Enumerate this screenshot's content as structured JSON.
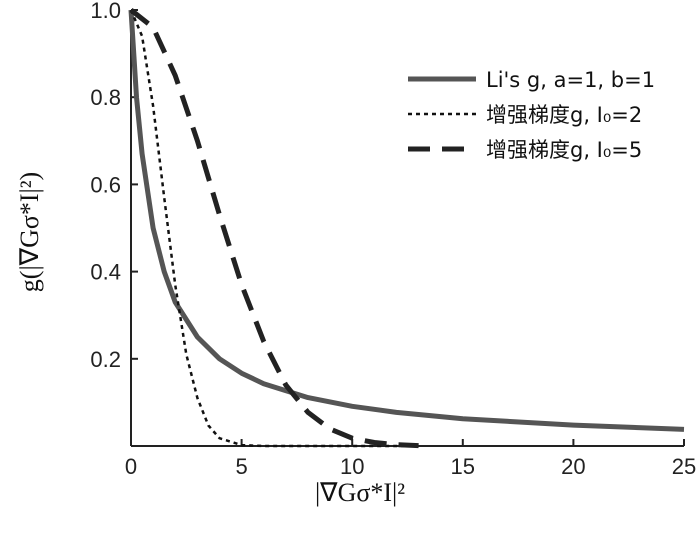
{
  "chart_data": {
    "type": "line",
    "xlabel": "|∇Gσ*I|²",
    "ylabel": "g(|∇Gσ*I|²)",
    "xlim": [
      0,
      25
    ],
    "ylim": [
      0,
      1.0
    ],
    "x_ticks": [
      0,
      5,
      10,
      15,
      20,
      25
    ],
    "y_ticks": [
      0.2,
      0.4,
      0.6,
      0.8,
      1.0
    ],
    "y_tick_labels": [
      "0.2",
      "0.4",
      "0.6",
      "0.8",
      "1.0"
    ],
    "grid": false,
    "legend_position": "top-right",
    "series": [
      {
        "name": "Li's g, a=1, b=1",
        "style": "solid",
        "color": "#555555",
        "x": [
          0,
          0.25,
          0.5,
          1,
          1.5,
          2,
          3,
          4,
          5,
          6,
          8,
          10,
          12,
          15,
          20,
          25
        ],
        "y": [
          1.0,
          0.8,
          0.67,
          0.5,
          0.4,
          0.33,
          0.25,
          0.2,
          0.167,
          0.143,
          0.111,
          0.091,
          0.077,
          0.0625,
          0.048,
          0.038
        ]
      },
      {
        "name": "增强梯度g, I₀=2",
        "style": "dotted",
        "color": "#111111",
        "x": [
          0,
          0.5,
          1,
          1.5,
          2,
          2.5,
          3,
          3.5,
          4,
          5,
          6,
          7,
          8,
          10,
          12.5
        ],
        "y": [
          1.0,
          0.94,
          0.78,
          0.57,
          0.37,
          0.21,
          0.11,
          0.047,
          0.018,
          0.002,
          0.0,
          0.0,
          0.0,
          0.0,
          0.0
        ]
      },
      {
        "name": "增强梯度g, I₀=5",
        "style": "dashed",
        "color": "#222222",
        "x": [
          0,
          1,
          2,
          3,
          4,
          5,
          6,
          7,
          8,
          9,
          10,
          11,
          12,
          13
        ],
        "y": [
          1.0,
          0.96,
          0.85,
          0.7,
          0.53,
          0.37,
          0.24,
          0.14,
          0.077,
          0.039,
          0.018,
          0.008,
          0.003,
          0.001
        ]
      }
    ]
  }
}
